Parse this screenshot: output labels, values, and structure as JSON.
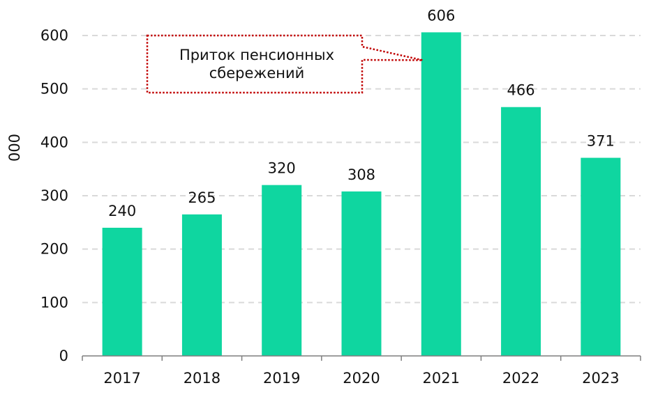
{
  "chart_data": {
    "type": "bar",
    "categories": [
      "2017",
      "2018",
      "2019",
      "2020",
      "2021",
      "2022",
      "2023"
    ],
    "values": [
      240,
      265,
      320,
      308,
      606,
      466,
      371
    ],
    "data_labels": [
      "240",
      "265",
      "320",
      "308",
      "606",
      "466",
      "371"
    ],
    "ylabel": "000",
    "ylim": [
      0,
      600
    ],
    "yticks": [
      0,
      100,
      200,
      300,
      400,
      500,
      600
    ],
    "ytick_labels": [
      "0",
      "100",
      "200",
      "300",
      "400",
      "500",
      "600"
    ],
    "grid": true,
    "grid_style": "dashed",
    "legend": "none",
    "annotation": {
      "lines": [
        "Приток пенсионных",
        "сбережений"
      ],
      "target_category": "2021",
      "border": "dotted"
    },
    "colors": {
      "bar": "#0fd6a0",
      "grid": "#d9d9d9",
      "axis": "#7f7f7f",
      "callout_border": "#c00000"
    }
  }
}
